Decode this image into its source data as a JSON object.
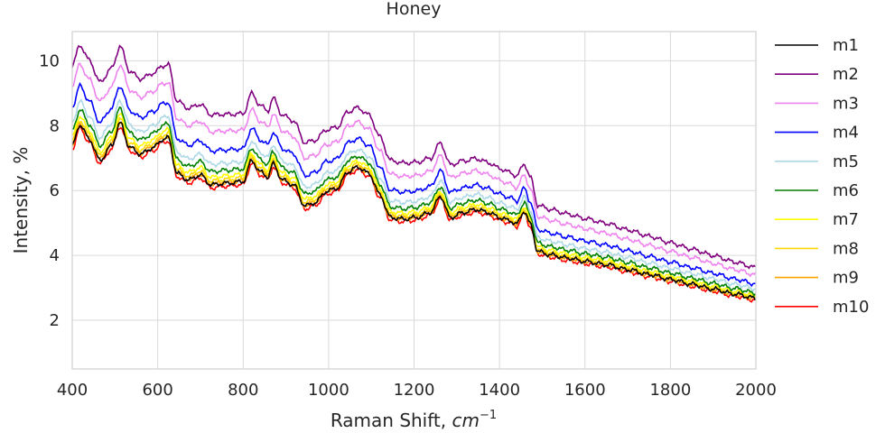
{
  "chart_data": {
    "type": "line",
    "title": "Honey",
    "xlabel": "Raman Shift, ",
    "xlabel_unit_base": "cm",
    "xlabel_unit_exp": "−1",
    "ylabel": "Intensity, %",
    "xlim": [
      400,
      2000
    ],
    "ylim": [
      0.5,
      10.9
    ],
    "xticks": [
      400,
      600,
      800,
      1000,
      1200,
      1400,
      1600,
      1800,
      2000
    ],
    "yticks": [
      2,
      4,
      6,
      8,
      10
    ],
    "grid": true,
    "legend_position": "right",
    "base_x": [
      400,
      418,
      440,
      465,
      492,
      512,
      535,
      560,
      590,
      612,
      625,
      645,
      672,
      700,
      725,
      760,
      800,
      820,
      840,
      858,
      870,
      892,
      918,
      945,
      968,
      995,
      1020,
      1045,
      1068,
      1095,
      1120,
      1145,
      1175,
      1205,
      1238,
      1262,
      1285,
      1315,
      1345,
      1375,
      1400,
      1425,
      1440,
      1458,
      1472,
      1490,
      1520,
      1560,
      1600,
      1650,
      1700,
      1750,
      1800,
      1850,
      1900,
      1950,
      2000
    ],
    "base_y": [
      7.3,
      7.95,
      7.5,
      6.85,
      7.3,
      8.0,
      7.25,
      7.05,
      7.25,
      7.5,
      7.55,
      6.45,
      6.25,
      6.4,
      6.1,
      6.15,
      6.2,
      6.85,
      6.5,
      6.35,
      6.75,
      6.25,
      6.1,
      5.45,
      5.55,
      5.9,
      6.0,
      6.5,
      6.65,
      6.45,
      5.8,
      5.1,
      5.05,
      5.1,
      5.25,
      5.75,
      5.1,
      5.25,
      5.35,
      5.25,
      5.1,
      5.0,
      4.9,
      5.3,
      4.9,
      4.05,
      3.95,
      3.85,
      3.75,
      3.65,
      3.5,
      3.35,
      3.2,
      3.05,
      2.9,
      2.75,
      2.62
    ],
    "series": [
      {
        "name": "m1",
        "color": "#000000",
        "offset": 0.08,
        "scale_low": 0.06
      },
      {
        "name": "m2",
        "color": "#800080",
        "offset": 2.55,
        "scale_low": 1.0
      },
      {
        "name": "m3",
        "color": "#ee82ee",
        "offset": 1.95,
        "scale_low": 0.78
      },
      {
        "name": "m4",
        "color": "#0000ff",
        "offset": 1.28,
        "scale_low": 0.5
      },
      {
        "name": "m5",
        "color": "#add8e6",
        "offset": 0.8,
        "scale_low": 0.35
      },
      {
        "name": "m6",
        "color": "#008000",
        "offset": 0.55,
        "scale_low": 0.22
      },
      {
        "name": "m7",
        "color": "#ffff00",
        "offset": 0.35,
        "scale_low": 0.14
      },
      {
        "name": "m8",
        "color": "#ffd700",
        "offset": 0.22,
        "scale_low": 0.1
      },
      {
        "name": "m9",
        "color": "#ffa500",
        "offset": 0.12,
        "scale_low": 0.05
      },
      {
        "name": "m10",
        "color": "#ff0000",
        "offset": -0.02,
        "scale_low": 0.0
      }
    ]
  }
}
